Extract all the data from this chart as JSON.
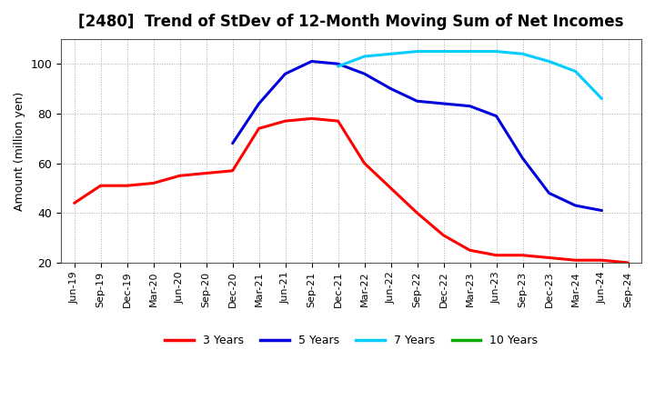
{
  "title": "[2480]  Trend of StDev of 12-Month Moving Sum of Net Incomes",
  "ylabel": "Amount (million yen)",
  "background_color": "#ffffff",
  "plot_bg_color": "#ffffff",
  "grid_color": "#aaaaaa",
  "ylim": [
    20,
    110
  ],
  "yticks": [
    20,
    40,
    60,
    80,
    100
  ],
  "x_labels": [
    "Jun-19",
    "Sep-19",
    "Dec-19",
    "Mar-20",
    "Jun-20",
    "Sep-20",
    "Dec-20",
    "Mar-21",
    "Jun-21",
    "Sep-21",
    "Dec-21",
    "Mar-22",
    "Jun-22",
    "Sep-22",
    "Dec-22",
    "Mar-23",
    "Jun-23",
    "Sep-23",
    "Dec-23",
    "Mar-24",
    "Jun-24",
    "Sep-24"
  ],
  "series": {
    "3 Years": {
      "color": "#ff0000",
      "values": [
        44,
        51,
        51,
        52,
        55,
        56,
        57,
        74,
        77,
        78,
        77,
        60,
        50,
        40,
        31,
        25,
        23,
        23,
        22,
        21,
        21,
        20
      ]
    },
    "5 Years": {
      "color": "#0000dd",
      "values": [
        null,
        null,
        null,
        null,
        null,
        null,
        68,
        84,
        96,
        101,
        100,
        96,
        90,
        85,
        84,
        83,
        79,
        62,
        48,
        43,
        41,
        null
      ]
    },
    "7 Years": {
      "color": "#00ccff",
      "values": [
        null,
        null,
        null,
        null,
        null,
        null,
        null,
        null,
        null,
        null,
        99,
        103,
        104,
        105,
        105,
        105,
        105,
        104,
        101,
        97,
        86,
        null
      ]
    },
    "10 Years": {
      "color": "#00aa00",
      "values": [
        null,
        null,
        null,
        null,
        null,
        null,
        null,
        null,
        null,
        null,
        null,
        null,
        null,
        null,
        null,
        null,
        null,
        null,
        null,
        null,
        null,
        null
      ]
    }
  },
  "legend_items": [
    "3 Years",
    "5 Years",
    "7 Years",
    "10 Years"
  ],
  "legend_colors": [
    "#ff0000",
    "#0000dd",
    "#00ccff",
    "#00aa00"
  ]
}
